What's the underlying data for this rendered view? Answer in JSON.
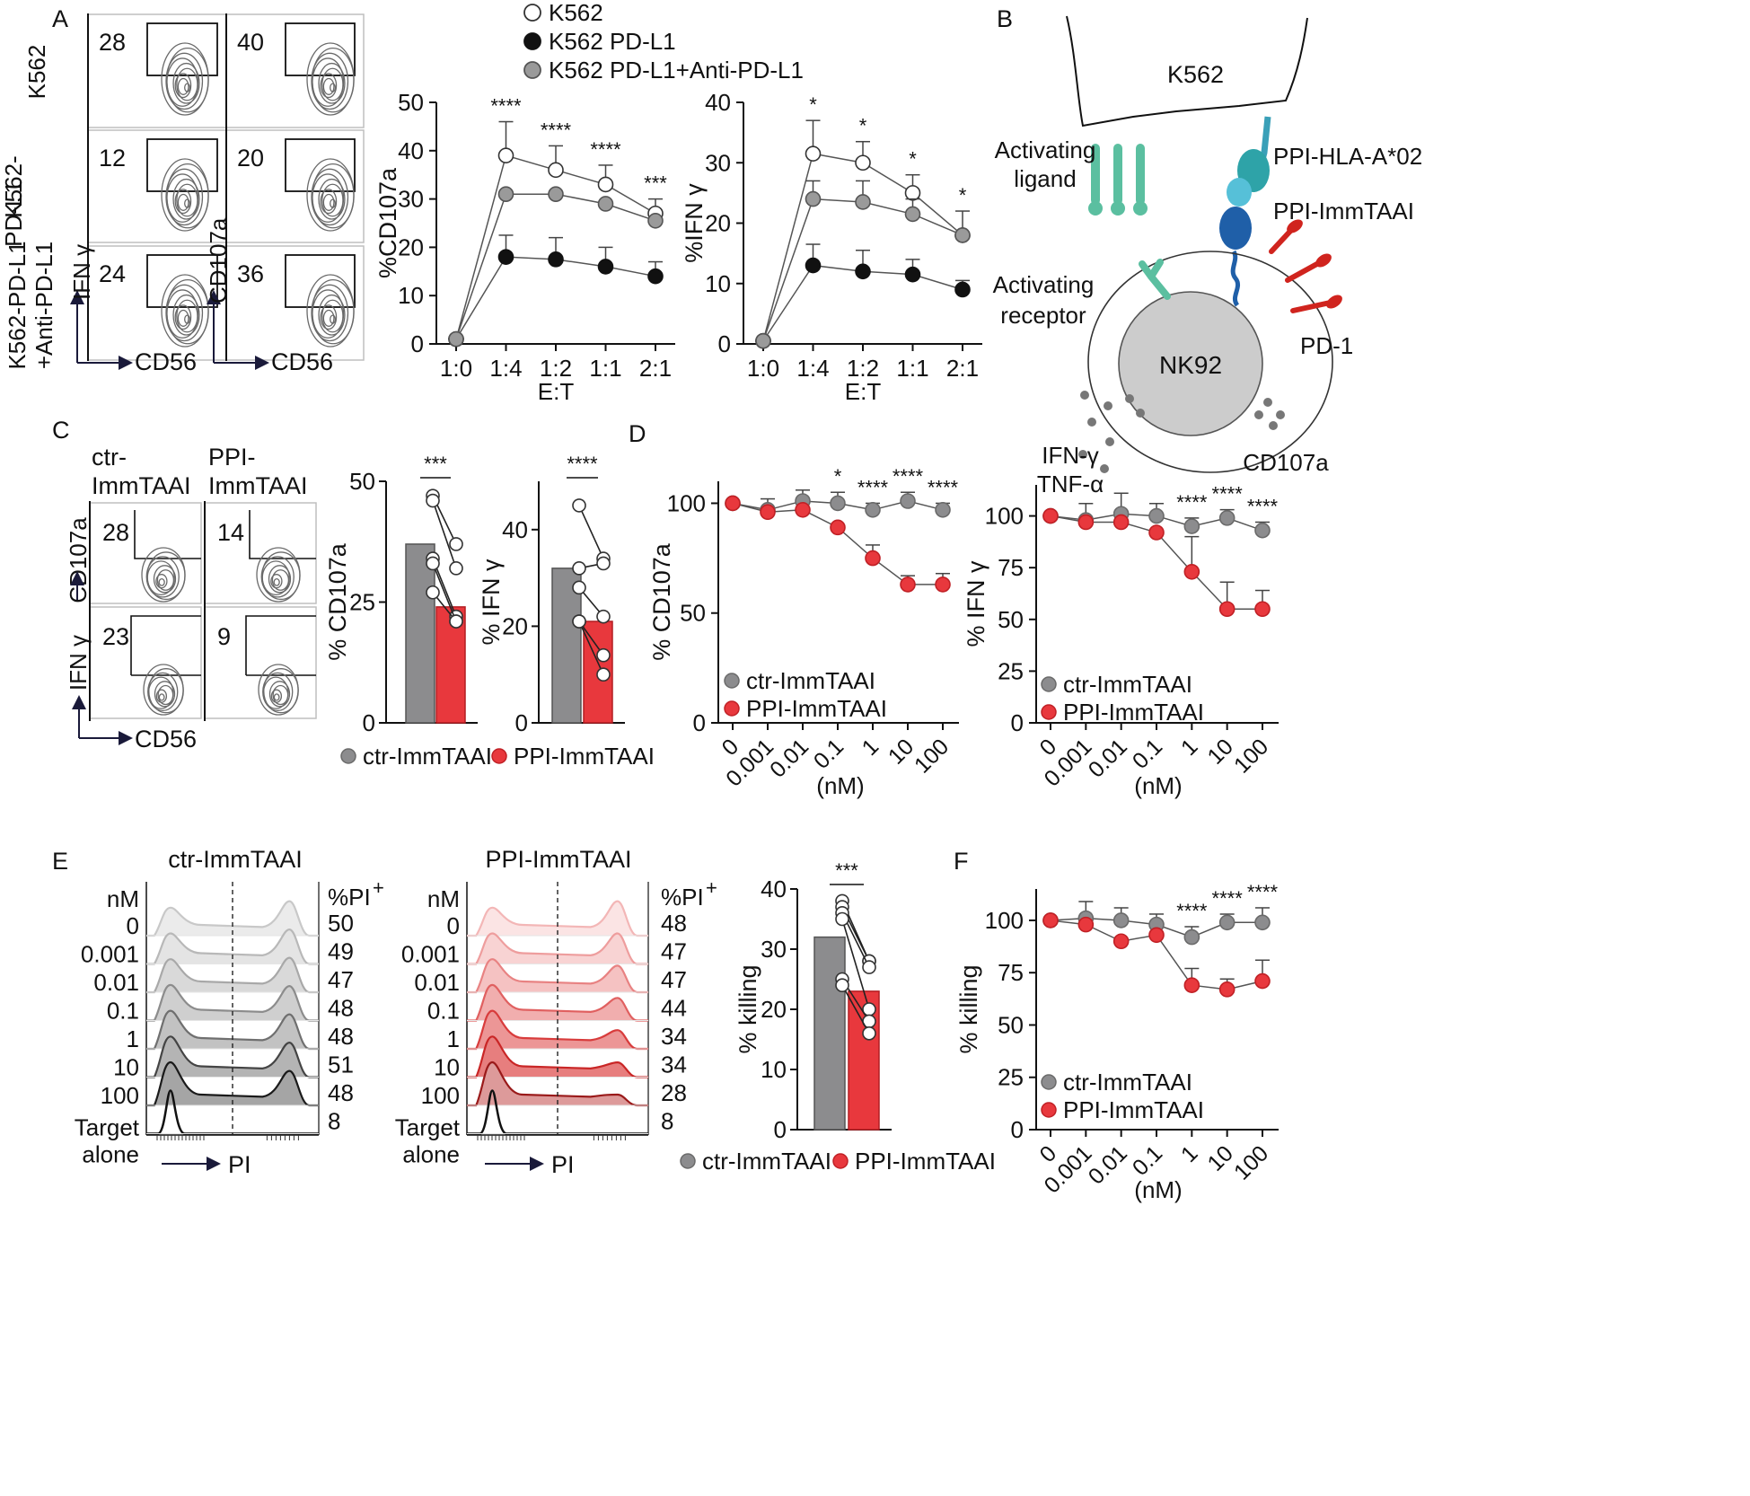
{
  "panels": {
    "A": "A",
    "B": "B",
    "C": "C",
    "D": "D",
    "E": "E",
    "F": "F"
  },
  "flow_A": {
    "rows": [
      "K562",
      "K562-\nPD-L1",
      "K562-PD-L1\n+Anti-PD-L1"
    ],
    "ifng_values": [
      "28",
      "12",
      "24"
    ],
    "cd107a_values": [
      "40",
      "20",
      "36"
    ],
    "ifng_ylabel": "IFN γ",
    "cd107a_ylabel": "CD107a",
    "xlabel": "CD56"
  },
  "legend_A": [
    "K562",
    "K562 PD-L1",
    "K562 PD-L1+Anti-PD-L1"
  ],
  "diagram_B": {
    "k562_label": "K562",
    "activating_ligand": "Activating\nligand",
    "ppi_hla": "PPI-HLA-A*02",
    "ppi_immtaai": "PPI-ImmTAAI",
    "activating_receptor": "Activating\nreceptor",
    "nk92": "NK92",
    "pd1": "PD-1",
    "cytokines": "IFN-γ\nTNF-α",
    "cd107a": "CD107a",
    "colors": {
      "ligand": "#5bbfa0",
      "hla": "#3aa0b8",
      "immtaai": "#1f5fa8",
      "pd1": "#d0241e",
      "nk92": "#cccccc"
    }
  },
  "flow_C": {
    "col_labels": [
      "ctr-\nImmTAAI",
      "PPI-\nImmTAAI"
    ],
    "cd107a_values": [
      "28",
      "14"
    ],
    "ifng_values": [
      "23",
      "9"
    ],
    "ylabels": [
      "CD107a",
      "IFN γ"
    ],
    "xlabel": "CD56"
  },
  "legend_C": [
    "ctr-ImmTAAI",
    "PPI-ImmTAAI"
  ],
  "hist_E": {
    "left_title": "ctr-ImmTAAI",
    "right_title": "PPI-ImmTAAI",
    "nm_header": "nM",
    "pi_header": "%PI",
    "pi_sup": "+",
    "rows": [
      "0",
      "0.001",
      "0.01",
      "0.1",
      "1",
      "10",
      "100",
      "Target\nalone"
    ],
    "left_values": [
      "50",
      "49",
      "47",
      "48",
      "48",
      "51",
      "48",
      "8"
    ],
    "right_values": [
      "48",
      "47",
      "47",
      "44",
      "34",
      "34",
      "28",
      "8"
    ],
    "xlabel": "PI"
  },
  "legend_E": [
    "ctr-ImmTAAI",
    "PPI-ImmTAAI"
  ],
  "colors": {
    "ctr": "#8c8c8e",
    "ppi": "#e8383d",
    "k562_pdl1": "#111111",
    "anti": "#9a9a9a"
  },
  "chart_data": [
    {
      "id": "A_cd107a",
      "type": "line",
      "categories": [
        "1:0",
        "1:4",
        "1:2",
        "1:1",
        "2:1"
      ],
      "xlabel": "E:T",
      "ylabel": "%CD107a",
      "ylim": [
        0,
        50
      ],
      "yticks": [
        "0",
        "10",
        "20",
        "30",
        "40",
        "50"
      ],
      "series": [
        {
          "name": "K562",
          "values": [
            1,
            39,
            36,
            33,
            27
          ],
          "err": [
            0,
            7,
            5,
            4,
            3
          ]
        },
        {
          "name": "K562 PD-L1",
          "values": [
            1,
            18,
            17.5,
            16,
            14
          ],
          "err": [
            0,
            4.5,
            4.5,
            4,
            3
          ]
        },
        {
          "name": "K562 PD-L1+Anti-PD-L1",
          "values": [
            1,
            31,
            31,
            29,
            25.5
          ],
          "err": [
            0,
            0,
            0,
            0,
            0
          ]
        }
      ],
      "annotations": [
        "****",
        "****",
        "****",
        "***"
      ]
    },
    {
      "id": "A_ifng",
      "type": "line",
      "categories": [
        "1:0",
        "1:4",
        "1:2",
        "1:1",
        "2:1"
      ],
      "xlabel": "E:T",
      "ylabel": "%IFN γ",
      "ylim": [
        0,
        40
      ],
      "yticks": [
        "0",
        "10",
        "20",
        "30",
        "40"
      ],
      "series": [
        {
          "name": "K562",
          "values": [
            0.5,
            31.5,
            30,
            25,
            18
          ],
          "err": [
            0,
            5.5,
            3.5,
            3,
            4
          ]
        },
        {
          "name": "K562 PD-L1",
          "values": [
            0.5,
            13,
            12,
            11.5,
            9
          ],
          "err": [
            0,
            3.5,
            3.5,
            2.5,
            1.5
          ]
        },
        {
          "name": "K562 PD-L1+Anti-PD-L1",
          "values": [
            0.5,
            24,
            23.5,
            21.5,
            18
          ],
          "err": [
            0,
            3,
            3.5,
            2.5,
            0
          ]
        }
      ],
      "annotations": [
        "*",
        "*",
        "*",
        "*"
      ]
    },
    {
      "id": "C_cd107a",
      "type": "bar",
      "categories": [
        "ctr-ImmTAAI",
        "PPI-ImmTAAI"
      ],
      "values": [
        37,
        24
      ],
      "paired_points": [
        [
          47,
          37
        ],
        [
          46,
          32
        ],
        [
          34,
          22
        ],
        [
          33,
          21
        ],
        [
          27,
          21
        ]
      ],
      "ylabel": "% CD107a",
      "ylim": [
        0,
        50
      ],
      "yticks": [
        "0",
        "25",
        "50"
      ],
      "annotation": "***"
    },
    {
      "id": "C_ifng",
      "type": "bar",
      "categories": [
        "ctr-ImmTAAI",
        "PPI-ImmTAAI"
      ],
      "values": [
        32,
        21
      ],
      "paired_points": [
        [
          45,
          34
        ],
        [
          32,
          33
        ],
        [
          28,
          22
        ],
        [
          21,
          14
        ],
        [
          21,
          10
        ]
      ],
      "ylabel": "% IFN γ",
      "ylim": [
        0,
        50
      ],
      "yticks": [
        "0",
        "20",
        "40"
      ],
      "annotation": "****"
    },
    {
      "id": "D_cd107a",
      "type": "line",
      "categories": [
        "0",
        "0.001",
        "0.01",
        "0.1",
        "1",
        "10",
        "100"
      ],
      "xlabel": "(nM)",
      "ylabel": "% CD107a",
      "ylim": [
        0,
        110
      ],
      "yticks": [
        "0",
        "50",
        "100"
      ],
      "series": [
        {
          "name": "ctr-ImmTAAI",
          "values": [
            100,
            97,
            101,
            100,
            97,
            101,
            97
          ],
          "err": [
            0,
            5,
            5,
            5,
            3,
            4,
            3
          ]
        },
        {
          "name": "PPI-ImmTAAI",
          "values": [
            100,
            96,
            97,
            89,
            75,
            63,
            63
          ],
          "err": [
            0,
            0,
            0,
            0,
            6,
            4,
            5
          ]
        }
      ],
      "annotations": [
        "",
        "",
        "",
        "*",
        "****",
        "****",
        "****"
      ],
      "legend": [
        "ctr-ImmTAAI",
        "PPI-ImmTAAI"
      ]
    },
    {
      "id": "D_ifng",
      "type": "line",
      "categories": [
        "0",
        "0.001",
        "0.01",
        "0.1",
        "1",
        "10",
        "100"
      ],
      "xlabel": "(nM)",
      "ylabel": "% IFN γ",
      "ylim": [
        0,
        115
      ],
      "yticks": [
        "0",
        "25",
        "50",
        "75",
        "100"
      ],
      "series": [
        {
          "name": "ctr-ImmTAAI",
          "values": [
            100,
            98,
            101,
            100,
            95,
            99,
            93
          ],
          "err": [
            0,
            8,
            10,
            6,
            4,
            4,
            4
          ]
        },
        {
          "name": "PPI-ImmTAAI",
          "values": [
            100,
            97,
            97,
            92,
            73,
            55,
            55
          ],
          "err": [
            0,
            0,
            0,
            0,
            17,
            13,
            9
          ]
        }
      ],
      "annotations": [
        "",
        "",
        "",
        "",
        "****",
        "****",
        "****"
      ],
      "legend": [
        "ctr-ImmTAAI",
        "PPI-ImmTAAI"
      ]
    },
    {
      "id": "E_killing",
      "type": "bar",
      "categories": [
        "ctr-ImmTAAI",
        "PPI-ImmTAAI"
      ],
      "values": [
        32,
        23
      ],
      "paired_points": [
        [
          38,
          28
        ],
        [
          37,
          28
        ],
        [
          36,
          27
        ],
        [
          35,
          20
        ],
        [
          25,
          18
        ],
        [
          24,
          16
        ]
      ],
      "ylabel": "% killing",
      "ylim": [
        0,
        40
      ],
      "yticks": [
        "0",
        "10",
        "20",
        "30",
        "40"
      ],
      "annotation": "***"
    },
    {
      "id": "F_killing",
      "type": "line",
      "categories": [
        "0",
        "0.001",
        "0.01",
        "0.1",
        "1",
        "10",
        "100"
      ],
      "xlabel": "(nM)",
      "ylabel": "% killing",
      "ylim": [
        0,
        115
      ],
      "yticks": [
        "0",
        "25",
        "50",
        "75",
        "100"
      ],
      "series": [
        {
          "name": "ctr-ImmTAAI",
          "values": [
            100,
            101,
            100,
            98,
            92,
            99,
            99
          ],
          "err": [
            0,
            8,
            6,
            5,
            5,
            4,
            7
          ]
        },
        {
          "name": "PPI-ImmTAAI",
          "values": [
            100,
            98,
            90,
            93,
            69,
            67,
            71
          ],
          "err": [
            0,
            0,
            0,
            0,
            8,
            5,
            10
          ]
        }
      ],
      "annotations": [
        "",
        "",
        "",
        "",
        "****",
        "****",
        "****"
      ],
      "legend": [
        "ctr-ImmTAAI",
        "PPI-ImmTAAI"
      ]
    }
  ]
}
